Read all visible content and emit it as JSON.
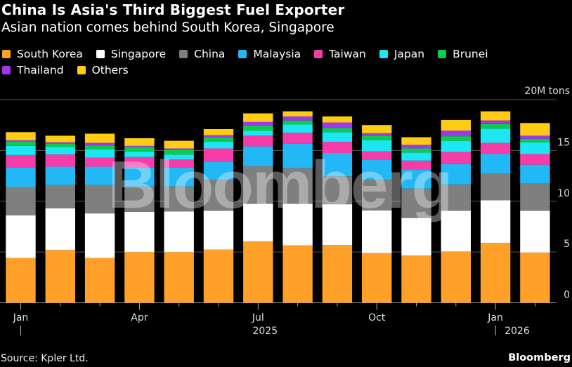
{
  "header": {
    "title": "China Is Asia's Third Biggest Fuel Exporter",
    "subtitle": "Asian nation comes behind South Korea, Singapore"
  },
  "footer": {
    "source": "Source: Kpler Ltd.",
    "brand": "Bloomberg"
  },
  "watermark": "Bloomberg",
  "chart_data": {
    "type": "bar",
    "stacked": true,
    "title": "China Is Asia's Third Biggest Fuel Exporter",
    "subtitle": "Asian nation comes behind South Korea, Singapore",
    "unit_label": "20M tons",
    "ylim": [
      0,
      20
    ],
    "yticks": [
      0,
      5,
      10,
      15
    ],
    "ytick_labels": [
      "0",
      "5",
      "10",
      "15"
    ],
    "grid": true,
    "legend_placement": "top-left",
    "categories": [
      "2025-01",
      "2025-02",
      "2025-03",
      "2025-04",
      "2025-05",
      "2025-06",
      "2025-07",
      "2025-08",
      "2025-09",
      "2025-10",
      "2025-11",
      "2025-12",
      "2026-01",
      "2026-02"
    ],
    "x_tick_labels": [
      {
        "index": 0,
        "label": "Jan"
      },
      {
        "index": 3,
        "label": "Apr"
      },
      {
        "index": 6,
        "label": "Jul"
      },
      {
        "index": 9,
        "label": "Oct"
      },
      {
        "index": 12,
        "label": "Jan"
      }
    ],
    "year_labels": [
      {
        "index": 6,
        "label": "2025"
      },
      {
        "index": 12,
        "label": "2026"
      }
    ],
    "series": [
      {
        "name": "South Korea",
        "color": "#ffa028",
        "values": [
          4.4,
          5.2,
          4.4,
          5.0,
          5.0,
          5.25,
          6.05,
          5.65,
          5.7,
          4.9,
          4.65,
          5.05,
          5.9,
          4.95
        ]
      },
      {
        "name": "Singapore",
        "color": "#ffffff",
        "values": [
          4.2,
          4.1,
          4.4,
          3.95,
          4.0,
          3.8,
          3.7,
          4.1,
          4.0,
          4.2,
          3.7,
          4.0,
          4.2,
          4.1
        ]
      },
      {
        "name": "China",
        "color": "#7f7f7f",
        "values": [
          2.8,
          2.3,
          2.8,
          2.5,
          2.45,
          3.05,
          3.7,
          3.5,
          2.75,
          3.0,
          2.9,
          2.6,
          2.6,
          2.7
        ]
      },
      {
        "name": "Malaysia",
        "color": "#22b8f5",
        "values": [
          1.95,
          1.8,
          1.8,
          1.9,
          1.85,
          1.8,
          1.95,
          2.45,
          2.3,
          2.0,
          1.9,
          2.0,
          1.95,
          1.85
        ]
      },
      {
        "name": "Taiwan",
        "color": "#f53ca8",
        "values": [
          1.2,
          1.2,
          0.9,
          1.0,
          0.8,
          1.3,
          1.05,
          1.05,
          1.1,
          0.8,
          0.85,
          1.2,
          1.1,
          1.05
        ]
      },
      {
        "name": "Japan",
        "color": "#1ce6f4",
        "values": [
          0.9,
          0.75,
          0.8,
          0.55,
          0.5,
          0.65,
          0.5,
          0.8,
          0.95,
          1.1,
          0.8,
          1.1,
          1.4,
          1.15
        ]
      },
      {
        "name": "Brunei",
        "color": "#0ccd4a",
        "values": [
          0.45,
          0.35,
          0.4,
          0.45,
          0.45,
          0.45,
          0.5,
          0.4,
          0.4,
          0.45,
          0.4,
          0.45,
          0.45,
          0.35
        ]
      },
      {
        "name": "Thailand",
        "color": "#a235f2",
        "values": [
          0.1,
          0.1,
          0.25,
          0.1,
          0.15,
          0.2,
          0.35,
          0.4,
          0.55,
          0.25,
          0.35,
          0.55,
          0.35,
          0.3
        ]
      },
      {
        "name": "Others",
        "color": "#ffcc14",
        "values": [
          0.8,
          0.65,
          0.9,
          0.75,
          0.75,
          0.6,
          0.85,
          0.5,
          0.6,
          0.8,
          0.75,
          1.05,
          0.9,
          1.25
        ]
      }
    ]
  }
}
